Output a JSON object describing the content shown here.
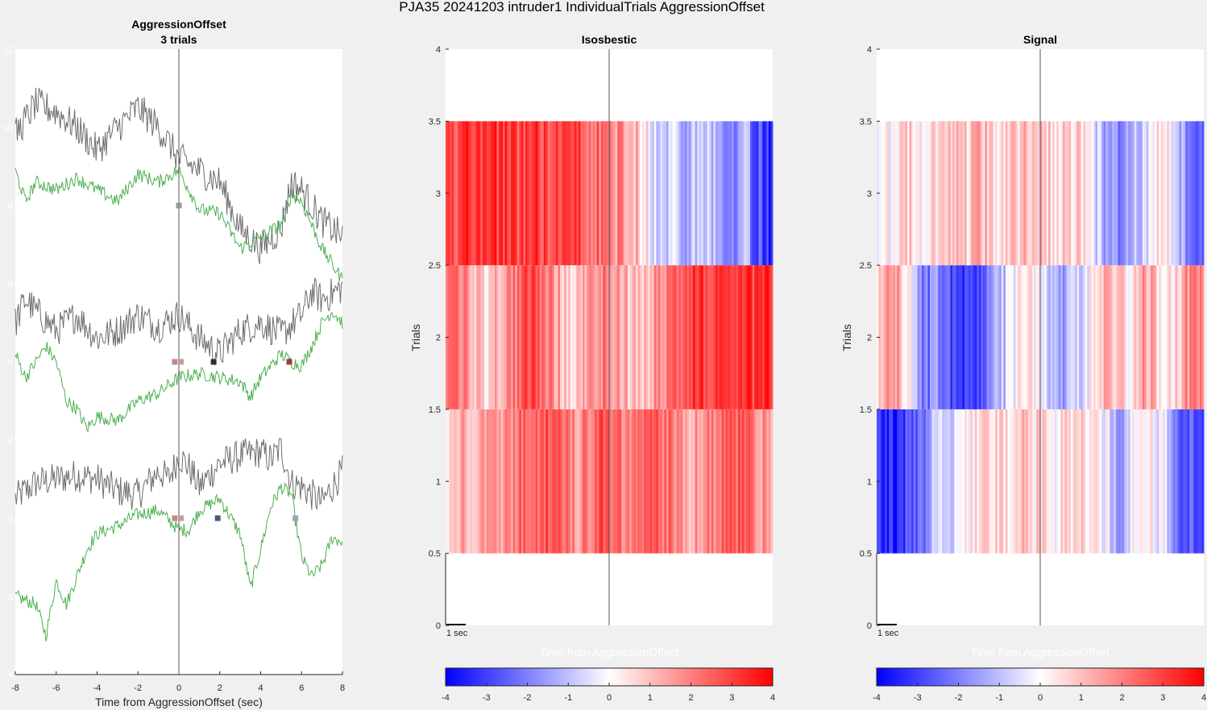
{
  "figure_title": "PJA35 20241203  intruder1 IndividualTrials AggressionOffset",
  "colors": {
    "figure_bg": "#f0f0f0",
    "axes_bg": "#ffffff",
    "gray_trace": "#6e6e6e",
    "green_trace": "#4caf50",
    "cmap_low": "#0000ff",
    "cmap_mid": "#ffffff",
    "cmap_high": "#ff0000"
  },
  "chart_data": [
    {
      "type": "line",
      "title_line1": "AggressionOffset",
      "title_line2": "3 trials",
      "xlabel": "Time from AggressionOffset (sec)",
      "xlim": [
        -8,
        8
      ],
      "ylim": [
        -4,
        12
      ],
      "xticks": [
        "-8",
        "-6",
        "-4",
        "-2",
        "0",
        "2",
        "4",
        "6",
        "8"
      ],
      "yticks": [
        "-4",
        "-2",
        "0",
        "2",
        "4",
        "6",
        "8",
        "10",
        "12"
      ],
      "event_line_x": 0,
      "series": [
        {
          "trial": 1,
          "baseline": 0,
          "color": "gray",
          "points": [
            [
              -8,
              0.5
            ],
            [
              -7,
              0.9
            ],
            [
              -6,
              1.0
            ],
            [
              -5,
              1.1
            ],
            [
              -4,
              1.0
            ],
            [
              -3,
              0.7
            ],
            [
              -2,
              0.6
            ],
            [
              -1,
              1.2
            ],
            [
              -0.5,
              1.0
            ],
            [
              0,
              1.6
            ],
            [
              0.5,
              1.3
            ],
            [
              1,
              0.8
            ],
            [
              2,
              1.4
            ],
            [
              3,
              1.6
            ],
            [
              4,
              1.7
            ],
            [
              4.5,
              1.5
            ],
            [
              5,
              1.8
            ],
            [
              5.5,
              0.9
            ],
            [
              6,
              0.8
            ],
            [
              7,
              0.4
            ],
            [
              8,
              1.2
            ]
          ]
        },
        {
          "trial": 1,
          "baseline": 0,
          "color": "green",
          "points": [
            [
              -8,
              -2.0
            ],
            [
              -7,
              -2.2
            ],
            [
              -6.5,
              -3.0
            ],
            [
              -6,
              -1.6
            ],
            [
              -5.5,
              -2.2
            ],
            [
              -5,
              -1.5
            ],
            [
              -4.5,
              -0.8
            ],
            [
              -4,
              -0.4
            ],
            [
              -3,
              -0.2
            ],
            [
              -2,
              0.1
            ],
            [
              -1,
              0.2
            ],
            [
              0,
              -0.3
            ],
            [
              0.5,
              -0.3
            ],
            [
              1,
              0.2
            ],
            [
              2,
              0.5
            ],
            [
              3,
              -0.4
            ],
            [
              3.5,
              -1.8
            ],
            [
              4,
              -0.8
            ],
            [
              4.5,
              0.3
            ],
            [
              5,
              0.8
            ],
            [
              5.5,
              0.6
            ],
            [
              6,
              -1.0
            ],
            [
              6.5,
              -1.5
            ],
            [
              7,
              -1.2
            ],
            [
              7.5,
              -0.5
            ],
            [
              8,
              -0.6
            ]
          ]
        },
        {
          "trial": 2,
          "baseline": 4,
          "color": "gray",
          "points": [
            [
              -8,
              5.0
            ],
            [
              -7.5,
              5.6
            ],
            [
              -7,
              5.3
            ],
            [
              -6,
              4.8
            ],
            [
              -5,
              5.2
            ],
            [
              -4,
              4.6
            ],
            [
              -3,
              4.8
            ],
            [
              -2,
              5.2
            ],
            [
              -1,
              4.9
            ],
            [
              0,
              5.2
            ],
            [
              1,
              4.6
            ],
            [
              2,
              4.2
            ],
            [
              3,
              4.8
            ],
            [
              4,
              5.0
            ],
            [
              5,
              4.7
            ],
            [
              6,
              5.2
            ],
            [
              6.5,
              5.8
            ],
            [
              7,
              5.6
            ],
            [
              8,
              5.9
            ]
          ]
        },
        {
          "trial": 2,
          "baseline": 4,
          "color": "green",
          "points": [
            [
              -8,
              4.2
            ],
            [
              -7.5,
              3.6
            ],
            [
              -7,
              4.0
            ],
            [
              -6.5,
              4.4
            ],
            [
              -6,
              4.0
            ],
            [
              -5.5,
              3.0
            ],
            [
              -5,
              2.8
            ],
            [
              -4.5,
              2.3
            ],
            [
              -4,
              2.6
            ],
            [
              -3,
              2.5
            ],
            [
              -2,
              3.0
            ],
            [
              -1,
              3.2
            ],
            [
              0,
              3.6
            ],
            [
              1,
              3.7
            ],
            [
              2,
              3.6
            ],
            [
              3,
              3.5
            ],
            [
              3.5,
              3.1
            ],
            [
              4,
              3.6
            ],
            [
              5,
              4.2
            ],
            [
              5.5,
              4.0
            ],
            [
              6,
              3.9
            ],
            [
              6.5,
              4.4
            ],
            [
              7,
              5.0
            ],
            [
              7.5,
              5.3
            ],
            [
              8,
              5.0
            ]
          ]
        },
        {
          "trial": 3,
          "baseline": 8,
          "color": "gray",
          "points": [
            [
              -8,
              9.8
            ],
            [
              -7,
              10.6
            ],
            [
              -6,
              10.4
            ],
            [
              -5,
              10.0
            ],
            [
              -4,
              9.4
            ],
            [
              -3,
              10.0
            ],
            [
              -2,
              10.5
            ],
            [
              -1,
              10.0
            ],
            [
              0,
              9.2
            ],
            [
              1,
              8.9
            ],
            [
              2,
              8.6
            ],
            [
              3,
              7.4
            ],
            [
              4,
              6.9
            ],
            [
              5,
              7.4
            ],
            [
              5.5,
              8.6
            ],
            [
              6,
              8.4
            ],
            [
              7,
              7.6
            ],
            [
              8,
              7.2
            ]
          ]
        },
        {
          "trial": 3,
          "baseline": 8,
          "color": "green",
          "points": [
            [
              -8,
              8.9
            ],
            [
              -7.5,
              8.1
            ],
            [
              -7,
              8.6
            ],
            [
              -6,
              8.4
            ],
            [
              -5,
              8.7
            ],
            [
              -4,
              8.4
            ],
            [
              -3,
              8.1
            ],
            [
              -2,
              8.8
            ],
            [
              -1,
              8.6
            ],
            [
              0,
              8.9
            ],
            [
              1,
              7.9
            ],
            [
              2,
              7.8
            ],
            [
              3,
              6.9
            ],
            [
              4,
              7.2
            ],
            [
              5,
              7.5
            ],
            [
              5.5,
              8.3
            ],
            [
              6,
              8.1
            ],
            [
              7,
              6.9
            ],
            [
              8,
              6.1
            ]
          ]
        }
      ],
      "event_markers": [
        {
          "x": 0,
          "y": 8,
          "color": "#999999"
        },
        {
          "x": -0.2,
          "y": 4,
          "color": "#c08a8a"
        },
        {
          "x": 0.1,
          "y": 4,
          "color": "#c49a9a"
        },
        {
          "x": 1.7,
          "y": 4,
          "color": "#3c2a2a"
        },
        {
          "x": 5.4,
          "y": 4,
          "color": "#a03a3a"
        },
        {
          "x": -0.2,
          "y": 0,
          "color": "#c08a8a"
        },
        {
          "x": 0.1,
          "y": 0,
          "color": "#c49a9a"
        },
        {
          "x": 1.9,
          "y": 0,
          "color": "#4a5a7a"
        },
        {
          "x": 5.7,
          "y": 0,
          "color": "#a0a0b0"
        }
      ]
    },
    {
      "type": "heatmap",
      "title": "Isosbestic",
      "ylabel": "Trials",
      "xlabel": "Time from AggressionOffset",
      "ylim": [
        0,
        4
      ],
      "yticks": [
        "0",
        "0.5",
        "1",
        "1.5",
        "2",
        "2.5",
        "3",
        "3.5",
        "4"
      ],
      "scalebar_label": "1 sec",
      "clim": [
        -4,
        4
      ],
      "colorbar_ticks": [
        "-4",
        "-3",
        "-2",
        "-1",
        "0",
        "1",
        "2",
        "3",
        "4"
      ],
      "rows": [
        {
          "trial": 1,
          "values": [
            1.0,
            1.4,
            1.2,
            0.8,
            1.3,
            1.6,
            1.5,
            1.9,
            2.1,
            2.4,
            2.2,
            2.6,
            2.8,
            2.5,
            2.3,
            2.0,
            1.8,
            2.2,
            2.5,
            2.7,
            2.4,
            2.1,
            1.9,
            2.2,
            2.6,
            2.8,
            2.4,
            2.0,
            1.6,
            1.2,
            1.5,
            1.8,
            2.1,
            2.4,
            2.7,
            2.5,
            2.2,
            1.9,
            1.6,
            1.3
          ]
        },
        {
          "trial": 2,
          "values": [
            2.6,
            2.2,
            1.8,
            1.4,
            1.0,
            0.6,
            1.2,
            1.6,
            2.0,
            2.4,
            2.8,
            2.5,
            2.0,
            1.6,
            1.2,
            0.8,
            1.0,
            1.4,
            1.8,
            2.2,
            1.8,
            1.4,
            1.0,
            0.8,
            1.2,
            1.6,
            2.0,
            2.4,
            2.6,
            2.8,
            3.0,
            3.2,
            3.0,
            2.8,
            3.2,
            3.4,
            3.2,
            3.0,
            3.3,
            3.5
          ]
        },
        {
          "trial": 3,
          "values": [
            2.6,
            2.8,
            3.0,
            3.2,
            3.0,
            2.9,
            3.1,
            3.0,
            2.8,
            2.9,
            3.2,
            3.0,
            2.8,
            2.6,
            2.9,
            3.2,
            3.0,
            2.6,
            2.4,
            2.0,
            1.8,
            1.6,
            1.4,
            1.0,
            0.4,
            -0.6,
            -1.0,
            -0.4,
            -1.2,
            -1.6,
            -0.8,
            -0.5,
            -1.2,
            -1.6,
            -2.0,
            -1.4,
            -1.0,
            -2.6,
            -3.0,
            -3.4
          ]
        }
      ]
    },
    {
      "type": "heatmap",
      "title": "Signal",
      "ylabel": "Trials",
      "xlabel": "Time from AggressionOffset",
      "ylim": [
        0,
        4
      ],
      "yticks": [
        "0",
        "0.5",
        "1",
        "1.5",
        "2",
        "2.5",
        "3",
        "3.5",
        "4"
      ],
      "scalebar_label": "1 sec",
      "clim": [
        -4,
        4
      ],
      "colorbar_ticks": [
        "-4",
        "-3",
        "-2",
        "-1",
        "0",
        "1",
        "2",
        "3",
        "4"
      ],
      "rows": [
        {
          "trial": 1,
          "values": [
            -3.2,
            -3.6,
            -3.4,
            -3.0,
            -2.6,
            -2.2,
            -1.6,
            -1.0,
            -0.6,
            -0.4,
            -0.2,
            0.2,
            0.4,
            0.6,
            0.8,
            0.6,
            0.8,
            1.0,
            0.8,
            0.6,
            0.4,
            0.2,
            0.4,
            0.6,
            0.8,
            0.4,
            0.2,
            0.0,
            -0.6,
            -1.4,
            -0.6,
            0.0,
            0.4,
            0.2,
            -0.4,
            -1.2,
            -2.0,
            -2.6,
            -2.4,
            -2.8
          ]
        },
        {
          "trial": 2,
          "values": [
            0.4,
            1.4,
            1.8,
            0.8,
            -0.4,
            -1.6,
            -2.2,
            -1.6,
            -2.6,
            -3.0,
            -3.4,
            -3.2,
            -2.8,
            -2.2,
            -1.6,
            -1.0,
            -0.4,
            0.2,
            0.6,
            0.4,
            -0.6,
            -1.4,
            -1.8,
            -1.2,
            -0.6,
            -0.2,
            0.4,
            1.0,
            1.4,
            0.8,
            0.4,
            1.0,
            1.6,
            1.2,
            0.6,
            0.2,
            0.8,
            1.6,
            2.2,
            2.0
          ]
        },
        {
          "trial": 3,
          "values": [
            0.2,
            0.4,
            -0.2,
            0.6,
            0.8,
            0.4,
            0.2,
            0.6,
            0.8,
            1.0,
            0.6,
            0.8,
            1.2,
            1.0,
            0.6,
            0.4,
            0.8,
            1.0,
            1.2,
            1.4,
            1.0,
            0.6,
            0.8,
            0.4,
            0.6,
            0.2,
            -0.6,
            -1.2,
            -1.6,
            -1.8,
            -1.4,
            -1.0,
            -0.8,
            -0.2,
            0.6,
            0.2,
            -0.8,
            -1.6,
            -2.0,
            -2.4
          ]
        }
      ]
    }
  ]
}
